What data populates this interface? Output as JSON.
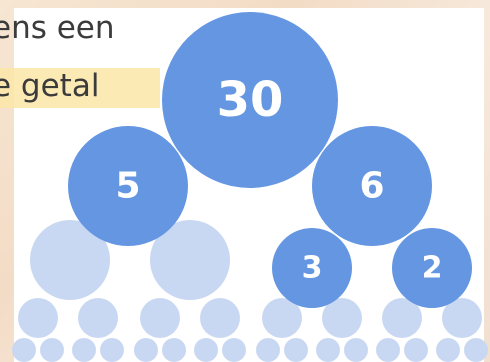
{
  "caption": {
    "line1": "ens een",
    "line2": "e getal"
  },
  "tree": {
    "root": "30",
    "level1": [
      "5",
      "6"
    ],
    "level2_right": [
      "3",
      "2"
    ]
  },
  "colors": {
    "node_dark": "#6496e2",
    "node_light": "#c9d8f2",
    "caption_highlight": "#fbe6a8"
  }
}
